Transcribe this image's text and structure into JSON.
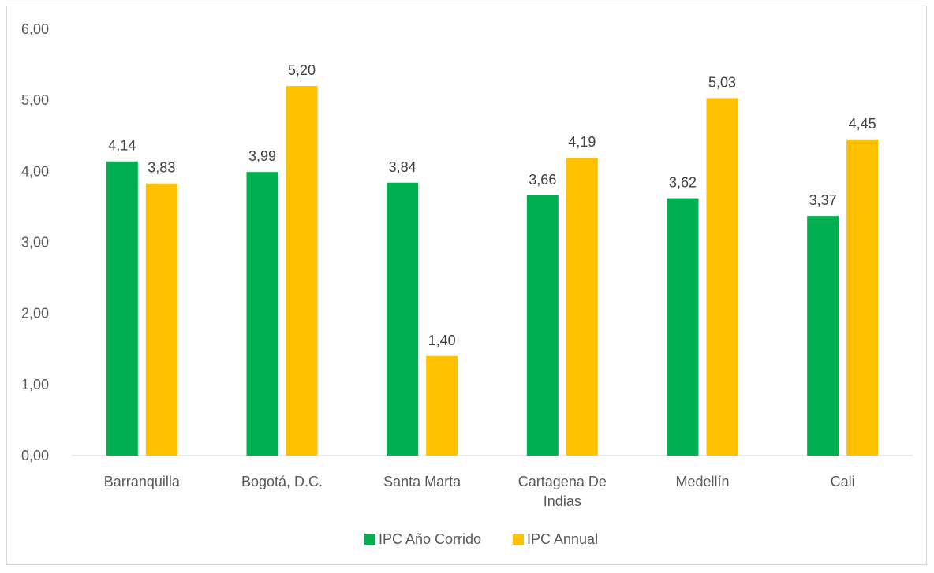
{
  "chart_data": {
    "type": "bar",
    "categories": [
      [
        "Barranquilla"
      ],
      [
        "Bogotá, D.C."
      ],
      [
        "Santa Marta"
      ],
      [
        "Cartagena De",
        "Indias"
      ],
      [
        "Medellín"
      ],
      [
        "Cali"
      ]
    ],
    "series": [
      {
        "name": "IPC Año Corrido",
        "color": "#00b050",
        "values": [
          4.14,
          3.99,
          3.84,
          3.66,
          3.62,
          3.37
        ],
        "labels": [
          "4,14",
          "3,99",
          "3,84",
          "3,66",
          "3,62",
          "3,37"
        ]
      },
      {
        "name": "IPC Annual",
        "color": "#ffc000",
        "values": [
          3.83,
          5.2,
          1.4,
          4.19,
          5.03,
          4.45
        ],
        "labels": [
          "3,83",
          "5,20",
          "1,40",
          "4,19",
          "5,03",
          "4,45"
        ]
      }
    ],
    "ylim": [
      0,
      6
    ],
    "yticks": [
      0,
      1,
      2,
      3,
      4,
      5,
      6
    ],
    "ytick_labels": [
      "0,00",
      "1,00",
      "2,00",
      "3,00",
      "4,00",
      "5,00",
      "6,00"
    ],
    "title": "",
    "xlabel": "",
    "ylabel": "",
    "grid": false,
    "legend": "bottom-center",
    "axis_color": "#d9d9d9"
  }
}
